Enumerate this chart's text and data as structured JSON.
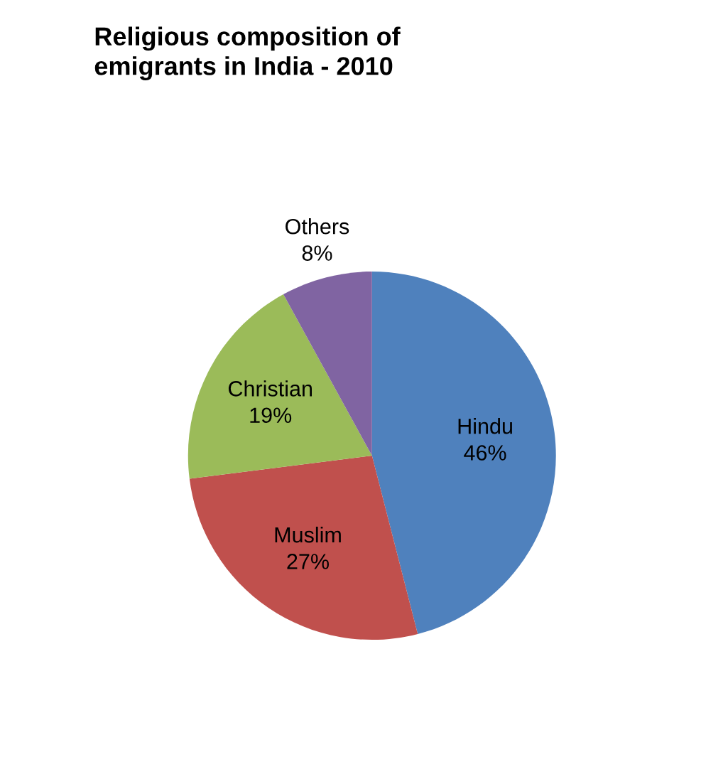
{
  "chart_data": {
    "type": "pie",
    "title": "Religious composition of\nemigrants in India - 2010",
    "categories": [
      "Hindu",
      "Muslim",
      "Christian",
      "Others"
    ],
    "values": [
      46,
      27,
      19,
      8
    ],
    "value_labels": [
      "46%",
      "27%",
      "19%",
      "8%"
    ],
    "colors": [
      "#4f81bd",
      "#c0504d",
      "#9bbb59",
      "#8064a2"
    ],
    "legend": false
  }
}
